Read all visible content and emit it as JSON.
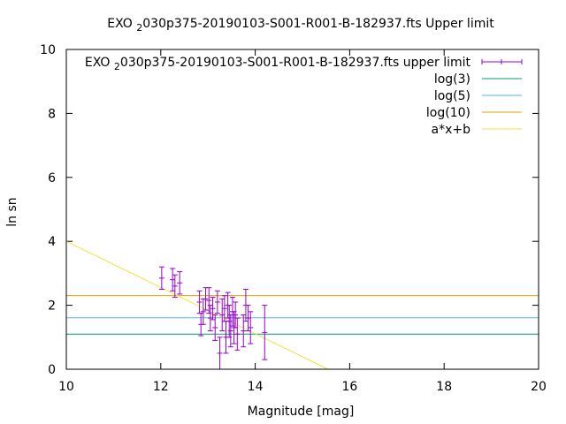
{
  "chart_data": {
    "type": "scatter",
    "title": "EXO 2030p375-20190103-S001-R001-B-182937.fts Upper limit",
    "title_parts": {
      "pre": "EXO ",
      "sub": "2",
      "post": "030p375-20190103-S001-R001-B-182937.fts Upper limit"
    },
    "xlabel": "Magnitude [mag]",
    "ylabel": "ln sn",
    "xlim": [
      10,
      20
    ],
    "ylim": [
      0,
      10
    ],
    "xticks": [
      10,
      12,
      14,
      16,
      18,
      20
    ],
    "yticks": [
      0,
      2,
      4,
      6,
      8,
      10
    ],
    "grid": false,
    "legend_position": "top-right",
    "series": [
      {
        "name": "EXO 2030p375-20190103-S001-R001-B-182937.fts upper limit",
        "name_parts": {
          "pre": "EXO ",
          "sub": "2",
          "post": "030p375-20190103-S001-R001-B-182937.fts upper limit"
        },
        "kind": "errorbar",
        "color": "#9400d3",
        "points": [
          {
            "x": 12.02,
            "y": 2.85,
            "err": 0.35
          },
          {
            "x": 12.25,
            "y": 2.8,
            "err": 0.35
          },
          {
            "x": 12.3,
            "y": 2.6,
            "err": 0.35
          },
          {
            "x": 12.4,
            "y": 2.7,
            "err": 0.35
          },
          {
            "x": 12.82,
            "y": 2.1,
            "err": 0.35
          },
          {
            "x": 12.85,
            "y": 1.4,
            "err": 0.35
          },
          {
            "x": 12.9,
            "y": 1.8,
            "err": 0.4
          },
          {
            "x": 12.95,
            "y": 2.2,
            "err": 0.35
          },
          {
            "x": 13.02,
            "y": 2.15,
            "err": 0.4
          },
          {
            "x": 13.05,
            "y": 1.6,
            "err": 0.4
          },
          {
            "x": 13.1,
            "y": 1.9,
            "err": 0.35
          },
          {
            "x": 13.15,
            "y": 1.3,
            "err": 0.4
          },
          {
            "x": 13.2,
            "y": 2.1,
            "err": 0.35
          },
          {
            "x": 13.25,
            "y": 0.5,
            "err": 0.5
          },
          {
            "x": 13.3,
            "y": 1.7,
            "err": 0.5
          },
          {
            "x": 13.35,
            "y": 1.9,
            "err": 0.4
          },
          {
            "x": 13.38,
            "y": 1.0,
            "err": 0.5
          },
          {
            "x": 13.42,
            "y": 2.0,
            "err": 0.4
          },
          {
            "x": 13.45,
            "y": 1.5,
            "err": 0.5
          },
          {
            "x": 13.48,
            "y": 1.2,
            "err": 0.5
          },
          {
            "x": 13.52,
            "y": 1.8,
            "err": 0.45
          },
          {
            "x": 13.55,
            "y": 1.3,
            "err": 0.5
          },
          {
            "x": 13.58,
            "y": 1.7,
            "err": 0.4
          },
          {
            "x": 13.62,
            "y": 1.1,
            "err": 0.5
          },
          {
            "x": 13.75,
            "y": 1.2,
            "err": 0.5
          },
          {
            "x": 13.8,
            "y": 2.0,
            "err": 0.5
          },
          {
            "x": 13.85,
            "y": 1.6,
            "err": 0.4
          },
          {
            "x": 13.9,
            "y": 1.3,
            "err": 0.5
          },
          {
            "x": 14.2,
            "y": 1.15,
            "err": 0.85
          }
        ]
      },
      {
        "name": "log(3)",
        "kind": "hline",
        "y": 1.0986,
        "color": "#009e73"
      },
      {
        "name": "log(5)",
        "kind": "hline",
        "y": 1.6094,
        "color": "#56b4e9"
      },
      {
        "name": "log(10)",
        "kind": "hline",
        "y": 2.3026,
        "color": "#e69f00"
      },
      {
        "name": "a*x+b",
        "kind": "line",
        "color": "#f0e442",
        "x": [
          10,
          15.54
        ],
        "y": [
          4.0,
          0.0
        ]
      }
    ]
  }
}
